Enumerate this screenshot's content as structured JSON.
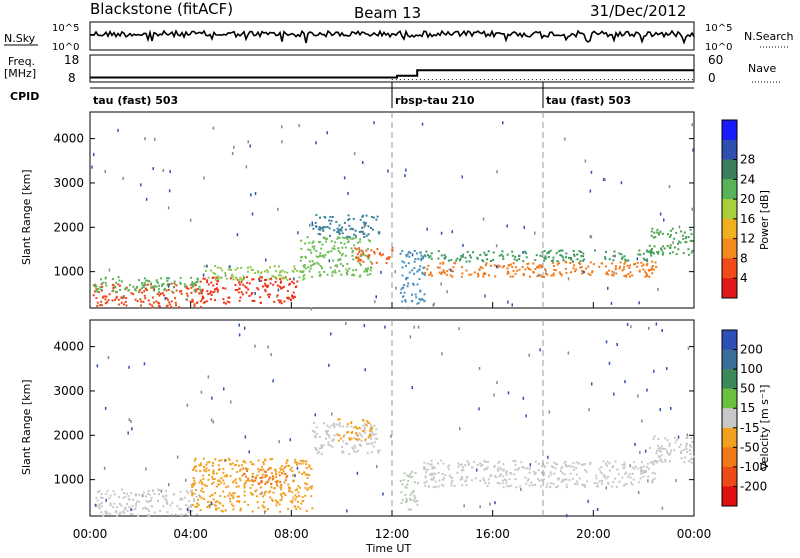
{
  "header": {
    "station": "Blackstone (fitACF)",
    "beam": "Beam 13",
    "date": "31/Dec/2012"
  },
  "summary_panels": {
    "nsky_label": "N.Sky",
    "nsky_ticks": [
      "10^5",
      "10^0"
    ],
    "nsearch_label": "N.Search",
    "nsearch_ticks": [
      "10^5",
      "10^0"
    ],
    "freq_label": "Freq.",
    "freq_unit": "[MHz]",
    "freq_ticks": [
      "18",
      "8"
    ],
    "nave_label": "Nave",
    "nave_ticks": [
      "60",
      "0"
    ],
    "cpid_label": "CPID",
    "cpid_segments": [
      {
        "start": 0,
        "end": 12,
        "name": "tau (fast) 503"
      },
      {
        "start": 12,
        "end": 18,
        "name": "rbsp-tau 210"
      },
      {
        "start": 18,
        "end": 24,
        "name": "tau (fast) 503"
      }
    ]
  },
  "colorbars": {
    "power": {
      "label": "Power [dB]",
      "ticks": [
        "4",
        "8",
        "12",
        "16",
        "20",
        "24",
        "28"
      ],
      "colors": [
        "#1a1aff",
        "#2f4fb0",
        "#3c7f5c",
        "#57b35a",
        "#a8d03a",
        "#f0b020",
        "#f28a1c",
        "#f04a1a",
        "#e01818"
      ]
    },
    "velocity": {
      "label": "Velocity [m s⁻¹]",
      "ticks": [
        "200",
        "100",
        "50",
        "15",
        "-15",
        "-50",
        "-100",
        "-200"
      ],
      "colors": [
        "#2f4fb8",
        "#3a6f9a",
        "#3c8a5a",
        "#6cc040",
        "#c8c8c8",
        "#f2a020",
        "#f07a18",
        "#ee4a18",
        "#e01010"
      ]
    }
  },
  "axes": {
    "ylabel": "Slant Range [km]",
    "yticks": [
      "1000",
      "2000",
      "3000",
      "4000"
    ],
    "xticks": [
      "00:00",
      "04:00",
      "08:00",
      "12:00",
      "16:00",
      "20:00",
      "00:00"
    ],
    "xlabel": "Time UT"
  },
  "chart_data": {
    "type": "heatmap",
    "x_unit": "hours UT",
    "y_unit": "km",
    "xlim": [
      0,
      24
    ],
    "ylim": [
      180,
      4600
    ],
    "freq_mhz": [
      {
        "start": 0,
        "end": 12.2,
        "value": 10.5
      },
      {
        "start": 12.2,
        "end": 13.0,
        "value": 11.5
      },
      {
        "start": 13.0,
        "end": 24,
        "value": 14.5
      }
    ],
    "nave": [
      {
        "start": 0,
        "end": 12,
        "value": 15
      },
      {
        "start": 12,
        "end": 24,
        "value": 8
      }
    ],
    "power_blobs": [
      {
        "t0": 0.1,
        "t1": 4.5,
        "r0": 200,
        "r1": 750,
        "color": "#e84a1a"
      },
      {
        "t0": 0.1,
        "t1": 4.5,
        "r0": 550,
        "r1": 900,
        "color": "#57b35a"
      },
      {
        "t0": 4.3,
        "t1": 8.2,
        "r0": 300,
        "r1": 900,
        "color": "#ee3318"
      },
      {
        "t0": 4.5,
        "t1": 8.5,
        "r0": 800,
        "r1": 1150,
        "color": "#8cc84a"
      },
      {
        "t0": 8.3,
        "t1": 11.2,
        "r0": 900,
        "r1": 1800,
        "color": "#6cbc54"
      },
      {
        "t0": 10.5,
        "t1": 12.0,
        "r0": 1200,
        "r1": 1600,
        "color": "#f06020"
      },
      {
        "t0": 8.8,
        "t1": 11.5,
        "r0": 1800,
        "r1": 2300,
        "color": "#3c7f9c"
      },
      {
        "t0": 12.3,
        "t1": 13.3,
        "r0": 300,
        "r1": 1500,
        "color": "#4a90c0"
      },
      {
        "t0": 13.2,
        "t1": 22.5,
        "r0": 900,
        "r1": 1250,
        "color": "#f07a1c"
      },
      {
        "t0": 13.2,
        "t1": 22.5,
        "r0": 1250,
        "r1": 1500,
        "color": "#3c9a5c"
      },
      {
        "t0": 22.2,
        "t1": 24.0,
        "r0": 1400,
        "r1": 2000,
        "color": "#4aa050"
      }
    ],
    "velocity_blobs": [
      {
        "t0": 0.1,
        "t1": 4.3,
        "r0": 200,
        "r1": 800,
        "color": "#c8c8c8"
      },
      {
        "t0": 4.0,
        "t1": 8.8,
        "r0": 300,
        "r1": 1500,
        "color": "#f2a020"
      },
      {
        "t0": 6.0,
        "t1": 7.8,
        "r0": 900,
        "r1": 1300,
        "color": "#f07a18"
      },
      {
        "t0": 8.8,
        "t1": 11.5,
        "r0": 1600,
        "r1": 2300,
        "color": "#c8c8c8"
      },
      {
        "t0": 9.8,
        "t1": 11.2,
        "r0": 1900,
        "r1": 2400,
        "color": "#f2a020"
      },
      {
        "t0": 12.3,
        "t1": 13.0,
        "r0": 300,
        "r1": 1200,
        "color": "#b8c8b0"
      },
      {
        "t0": 13.2,
        "t1": 22.5,
        "r0": 850,
        "r1": 1450,
        "color": "#c8c8c8"
      },
      {
        "t0": 22.2,
        "t1": 24.0,
        "r0": 1400,
        "r1": 2000,
        "color": "#c8c8c8"
      }
    ]
  }
}
